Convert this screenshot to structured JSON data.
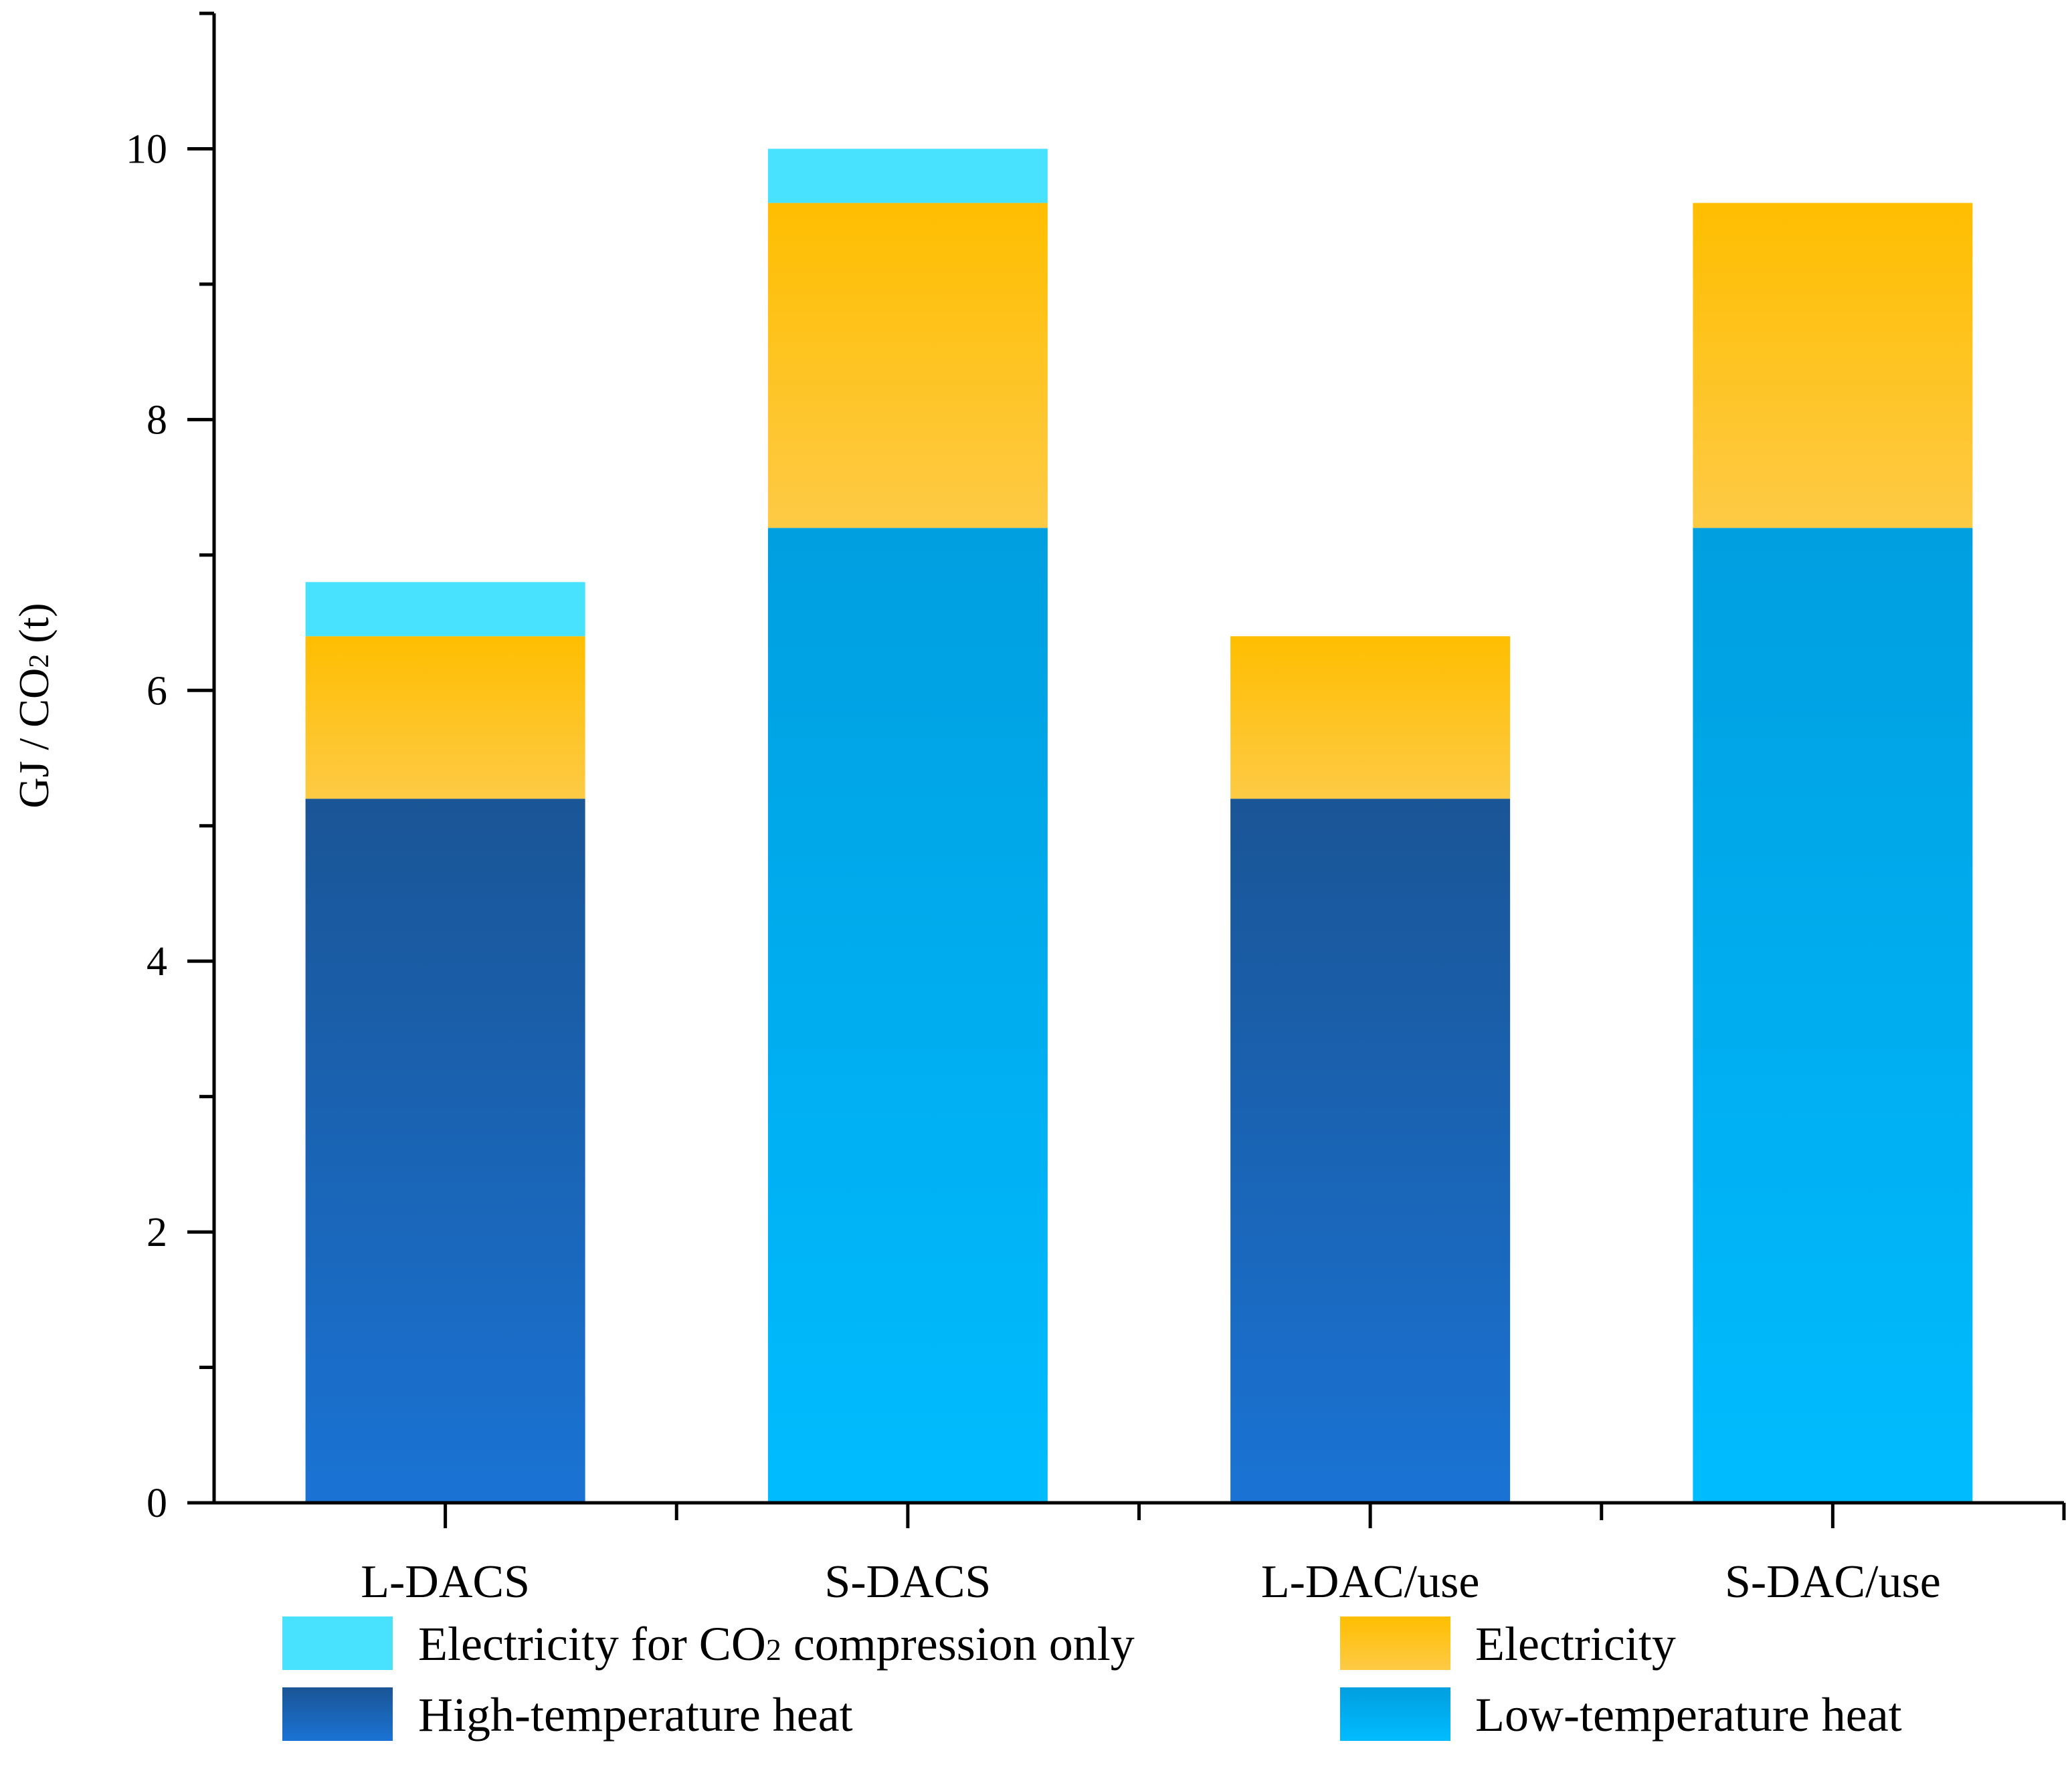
{
  "chart_data": {
    "type": "bar",
    "stacked": true,
    "title": "",
    "xlabel": "",
    "ylabel": {
      "prefix": "GJ / CO",
      "subscript": "2",
      "suffix": " (t)"
    },
    "ylim": [
      0,
      11
    ],
    "yticks": [
      0,
      2,
      4,
      6,
      8,
      10
    ],
    "categories": [
      "L-DACS",
      "S-DACS",
      "L-DAC/use",
      "S-DAC/use"
    ],
    "series": [
      {
        "key": "high_temp_heat",
        "name": "High-temperature heat",
        "values": [
          5.2,
          0,
          5.2,
          0
        ],
        "color_top": "#1a5596",
        "color_bottom": "#1a73d4"
      },
      {
        "key": "low_temp_heat",
        "name": "Low-temperature heat",
        "values": [
          0,
          7.2,
          0,
          7.2
        ],
        "color_top": "#009fe0",
        "color_bottom": "#00bcff"
      },
      {
        "key": "electricity",
        "name": "Electricity",
        "values": [
          1.2,
          2.4,
          1.2,
          2.4
        ],
        "color_top": "#ffbe00",
        "color_bottom": "#fdca45"
      },
      {
        "key": "compression",
        "name": "Electricity for CO2 compression only",
        "values": [
          0.4,
          0.4,
          0,
          0
        ],
        "color_top": "#48e2ff",
        "color_bottom": "#48e2ff"
      }
    ],
    "legend": {
      "placement": "bottom",
      "items": [
        {
          "series": "compression",
          "prefix": "Electricity for CO",
          "subscript": "2",
          "suffix": " compression only"
        },
        {
          "series": "electricity",
          "prefix": "Electricity",
          "subscript": "",
          "suffix": ""
        },
        {
          "series": "high_temp_heat",
          "prefix": "High-temperature heat",
          "subscript": "",
          "suffix": ""
        },
        {
          "series": "low_temp_heat",
          "prefix": "Low-temperature heat",
          "subscript": "",
          "suffix": ""
        }
      ]
    }
  }
}
